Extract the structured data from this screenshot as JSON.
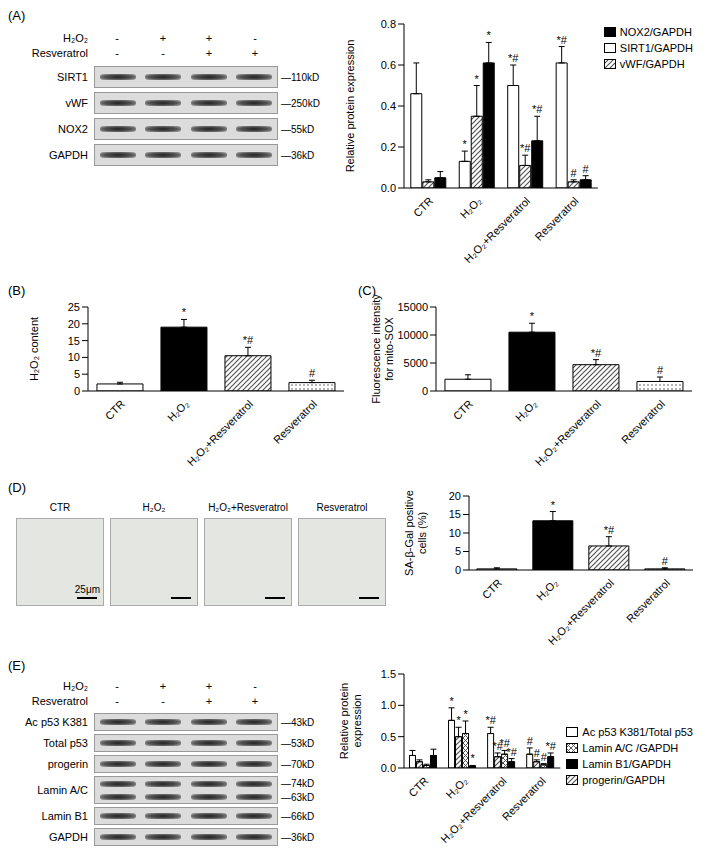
{
  "panel_labels": [
    "(A)",
    "(B)",
    "(C)",
    "(D)",
    "(E)"
  ],
  "blots": [
    {
      "conditions": [
        {
          "name": "H₂O₂",
          "signs": [
            "-",
            "+",
            "+",
            "-"
          ]
        },
        {
          "name": "Resveratrol",
          "signs": [
            "-",
            "-",
            "+",
            "+"
          ]
        }
      ],
      "rows": [
        {
          "name": "SIRT1",
          "sizes": [
            "—110kD"
          ]
        },
        {
          "name": "vWF",
          "sizes": [
            "—250kD"
          ]
        },
        {
          "name": "NOX2",
          "sizes": [
            "—55kD"
          ]
        },
        {
          "name": "GAPDH",
          "sizes": [
            "—36kD"
          ]
        }
      ]
    },
    {
      "conditions": [
        {
          "name": "H₂O₂",
          "signs": [
            "-",
            "+",
            "+",
            "-"
          ]
        },
        {
          "name": "Resveratrol",
          "signs": [
            "-",
            "-",
            "+",
            "+"
          ]
        }
      ],
      "rows": [
        {
          "name": "Ac p53 K381",
          "sizes": [
            "—43kD"
          ]
        },
        {
          "name": "Total p53",
          "sizes": [
            "—53kD"
          ]
        },
        {
          "name": "progerin",
          "sizes": [
            "—70kD"
          ]
        },
        {
          "name": "Lamin A/C",
          "sizes": [
            "—74kD",
            "—63kD"
          ]
        },
        {
          "name": "Lamin B1",
          "sizes": [
            "—66kD"
          ]
        },
        {
          "name": "GAPDH",
          "sizes": [
            "—36kD"
          ]
        }
      ]
    }
  ],
  "images": {
    "labels": [
      "CTR",
      "H₂O₂",
      "H₂O₂+Resveratrol",
      "Resveratrol"
    ],
    "scale_bar": "25μm"
  },
  "chart_data": [
    {
      "type": "bar",
      "y_label": "Relative protein expression",
      "categories": [
        "CTR",
        "H₂O₂",
        "H₂O₂+Resveratrol",
        "Resveratrol"
      ],
      "series": [
        {
          "name": "SIRT1/GAPDH",
          "color": "#ffffff",
          "values": [
            0.46,
            0.13,
            0.5,
            0.61
          ],
          "errors": [
            0.15,
            0.05,
            0.1,
            0.08
          ],
          "marks": [
            null,
            "*",
            "*#",
            "*#"
          ]
        },
        {
          "name": "vWF/GAPDH",
          "color": "#555555",
          "values": [
            0.03,
            0.35,
            0.11,
            0.03
          ],
          "errors": [
            0.01,
            0.15,
            0.05,
            0.01
          ],
          "marks": [
            null,
            "*",
            "*#",
            "#"
          ]
        },
        {
          "name": "NOX2/GAPDH",
          "color": "#000000",
          "values": [
            0.05,
            0.61,
            0.23,
            0.04
          ],
          "errors": [
            0.03,
            0.1,
            0.12,
            0.02
          ],
          "marks": [
            null,
            "*",
            "*#",
            "#"
          ]
        }
      ],
      "ylim": [
        0,
        0.8
      ],
      "yticks": [
        {
          "value": 0,
          "label": "0.0"
        },
        0.2,
        0.4,
        0.6,
        0.8
      ],
      "legend": "upper right"
    },
    {
      "type": "bar",
      "y_label": "H₂O₂ content",
      "categories": [
        "CTR",
        "H₂O₂",
        "H₂O₂+Resveratrol",
        "Resveratrol"
      ],
      "values": [
        2.1,
        19,
        10.5,
        2.5
      ],
      "errors": [
        0.5,
        2.3,
        2.5,
        0.7
      ],
      "marks": [
        null,
        "*",
        "*#",
        "#"
      ],
      "colors": [
        "#ffffff",
        "#000000",
        "#555555",
        "#555555"
      ],
      "ylim": [
        0,
        25
      ],
      "yticks": [
        0,
        5,
        10,
        15,
        20,
        25
      ]
    },
    {
      "type": "bar",
      "y_label": "Fluorescence intensity for mito-SOX",
      "categories": [
        "CTR",
        "H₂O₂",
        "H₂O₂+Resveratrol",
        "Resveratrol"
      ],
      "values": [
        2100,
        10500,
        4700,
        1700
      ],
      "errors": [
        800,
        1600,
        900,
        800
      ],
      "marks": [
        null,
        "*",
        "*#",
        "#"
      ],
      "colors": [
        "#ffffff",
        "#000000",
        "#555555",
        "#555555"
      ],
      "ylim": [
        0,
        15000
      ],
      "yticks": [
        0,
        5000,
        10000,
        15000
      ]
    },
    {
      "type": "bar",
      "y_label": "SA-β-Gal positive cells (%)",
      "categories": [
        "CTR",
        "H₂O₂",
        "H₂O₂+Resveratrol",
        "Resveratrol"
      ],
      "values": [
        0.3,
        13.3,
        6.5,
        0.3
      ],
      "errors": [
        0.3,
        2.5,
        2.5,
        0.3
      ],
      "marks": [
        null,
        "*",
        "*#",
        "#"
      ],
      "colors": [
        "#ffffff",
        "#000000",
        "#555555",
        "#555555"
      ],
      "ylim": [
        0,
        20
      ],
      "yticks": [
        0,
        5,
        10,
        15,
        20
      ]
    },
    {
      "type": "bar",
      "y_label": "Relative protein expression",
      "categories": [
        "CTR",
        "H₂O₂",
        "H₂O₂+Resveratrol",
        "Resveratrol"
      ],
      "series": [
        {
          "name": "Ac p53 K381/Total p53",
          "color": "#ffffff",
          "values": [
            0.2,
            0.76,
            0.55,
            0.22
          ],
          "errors": [
            0.08,
            0.2,
            0.1,
            0.1
          ],
          "marks": [
            null,
            "*",
            "*#",
            "#"
          ]
        },
        {
          "name": "progerin/GAPDH",
          "color": "#555555",
          "values": [
            0.1,
            0.5,
            0.18,
            0.1
          ],
          "errors": [
            0.03,
            0.15,
            0.06,
            0.03
          ],
          "marks": [
            null,
            "*",
            "*#",
            "#"
          ]
        },
        {
          "name": "Lamin A/C /GAPDH",
          "color": "#555555",
          "values": [
            0.04,
            0.55,
            0.22,
            0.05
          ],
          "errors": [
            0.02,
            0.2,
            0.06,
            0.02
          ],
          "marks": [
            null,
            "*",
            "*#",
            "#"
          ]
        },
        {
          "name": "Lamin B1/GAPDH",
          "color": "#000000",
          "values": [
            0.2,
            0.03,
            0.1,
            0.18
          ],
          "errors": [
            0.1,
            0.01,
            0.05,
            0.06
          ],
          "marks": [
            null,
            "*",
            "*#",
            "*#"
          ]
        }
      ],
      "ylim": [
        0,
        1.5
      ],
      "yticks": [
        {
          "value": 0,
          "label": "0.0"
        },
        0.5,
        {
          "value": 1,
          "label": "1.0"
        },
        1.5
      ],
      "legend": "right"
    }
  ]
}
